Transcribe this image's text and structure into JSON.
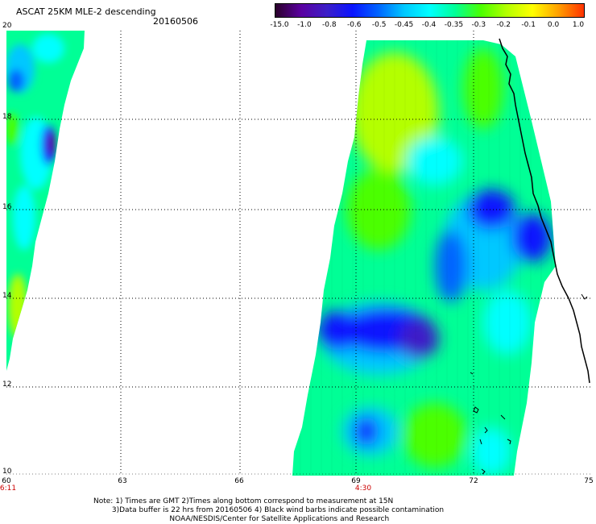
{
  "header": {
    "title": "ASCAT 25KM MLE-2 descending",
    "date": "20160506"
  },
  "colorbar": {
    "labels": [
      "-15.0",
      "-1.0",
      "-0.8",
      "-0.6",
      "-0.5",
      "-0.45",
      "-0.4",
      "-0.35",
      "-0.3",
      "-0.2",
      "-0.1",
      "0.0",
      "1.0"
    ],
    "colors": [
      "#2a002a",
      "#5a00a0",
      "#3c1ec8",
      "#0a14ff",
      "#0064ff",
      "#00c8ff",
      "#00ffff",
      "#00ff96",
      "#4bff00",
      "#b4ff00",
      "#ffff00",
      "#ffa000",
      "#ff3200"
    ]
  },
  "axes": {
    "lat_labels": [
      "20",
      "18",
      "16",
      "14",
      "12",
      "10"
    ],
    "lon_labels": [
      "60",
      "63",
      "66",
      "69",
      "72",
      "75"
    ],
    "time_labels": [
      {
        "lon": "60",
        "time": "6:11"
      },
      {
        "lon": "69",
        "time": "4:30"
      }
    ]
  },
  "note": {
    "line1": "Note: 1) Times are GMT 2)Times along bottom correspond to measurement at 15N",
    "line2": "3)Data buffer is 22 hrs from 20160506 4) Black wind barbs indicate possible contamination",
    "line3": "NOAA/NESDIS/Center for Satellite Applications and Research"
  }
}
